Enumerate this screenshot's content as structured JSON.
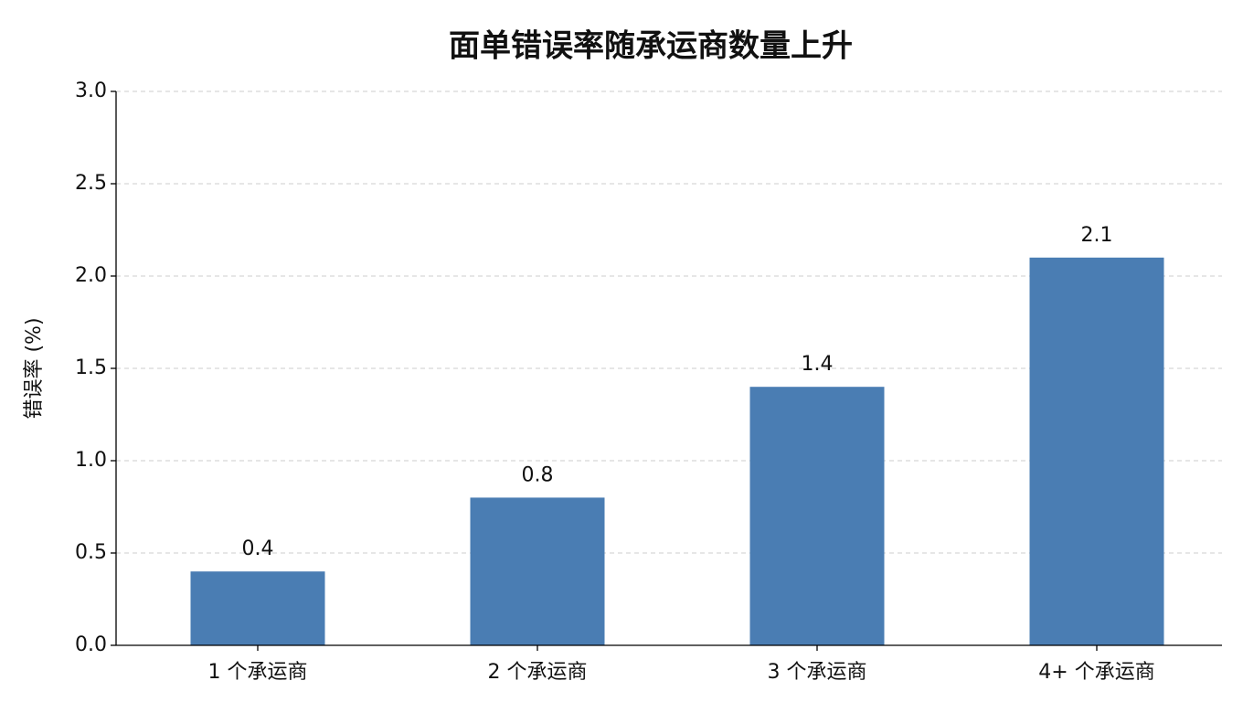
{
  "chart_data": {
    "type": "bar",
    "title": "面单错误率随承运商数量上升",
    "y_label": "错误率 (%)",
    "categories": [
      "1 个承运商",
      "2 个承运商",
      "3 个承运商",
      "4+ 个承运商"
    ],
    "values": [
      0.4,
      0.8,
      1.4,
      2.1
    ],
    "color": "#4a7db3",
    "ylim": [
      0,
      3
    ],
    "yticks": [
      {
        "value": 0,
        "label": "0.0"
      },
      0.5,
      {
        "value": 1,
        "label": "1.0"
      },
      1.5,
      {
        "value": 2,
        "label": "2.0"
      },
      2.5,
      {
        "value": 3,
        "label": "3.0"
      }
    ],
    "grid": true
  }
}
